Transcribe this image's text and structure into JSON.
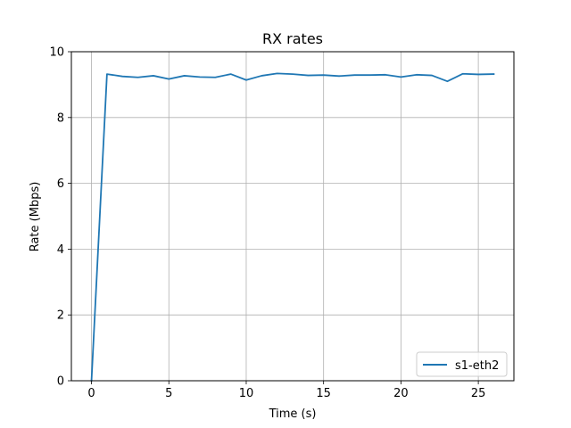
{
  "chart_data": {
    "type": "line",
    "title": "RX rates",
    "xlabel": "Time (s)",
    "ylabel": "Rate (Mbps)",
    "xlim": [
      -1.3,
      27.3
    ],
    "ylim": [
      0,
      10
    ],
    "xticks": [
      0,
      5,
      10,
      15,
      20,
      25
    ],
    "yticks": [
      0,
      2,
      4,
      6,
      8,
      10
    ],
    "grid": true,
    "legend": "lower-right",
    "series": [
      {
        "name": "s1-eth2",
        "color": "#1f77b4",
        "x": [
          0,
          1,
          2,
          3,
          4,
          5,
          6,
          7,
          8,
          9,
          10,
          11,
          12,
          13,
          14,
          15,
          16,
          17,
          18,
          19,
          20,
          21,
          22,
          23,
          24,
          25,
          26
        ],
        "y": [
          0.0,
          9.32,
          9.25,
          9.22,
          9.27,
          9.17,
          9.27,
          9.23,
          9.22,
          9.32,
          9.14,
          9.27,
          9.34,
          9.32,
          9.28,
          9.29,
          9.26,
          9.29,
          9.29,
          9.3,
          9.23,
          9.3,
          9.28,
          9.1,
          9.33,
          9.31,
          9.32
        ]
      }
    ]
  }
}
